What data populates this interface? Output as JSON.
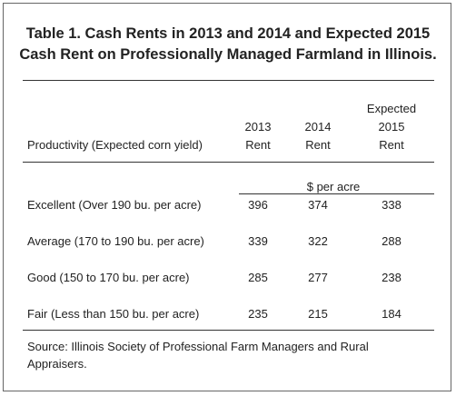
{
  "title": [
    "Table 1.  Cash Rents in 2013 and 2014 and Expected 2015",
    "Cash Rent on Professionally Managed Farmland in Illinois."
  ],
  "table": {
    "columns": [
      [
        "Productivity (Expected corn yield)"
      ],
      [
        "2013",
        "Rent"
      ],
      [
        "2014",
        "Rent"
      ],
      [
        "Expected",
        "2015",
        "Rent"
      ]
    ],
    "unit": "$ per acre",
    "rows": [
      [
        "Excellent (Over 190 bu. per acre)",
        "396",
        "374",
        "338"
      ],
      [
        "Average (170 to 190 bu. per acre)",
        "339",
        "322",
        "288"
      ],
      [
        "Good (150 to 170 bu. per acre)",
        "285",
        "277",
        "238"
      ],
      [
        "Fair (Less than 150 bu. per acre)",
        "235",
        "215",
        "184"
      ]
    ]
  },
  "source": [
    "Source:  Illinois Society of Professional Farm Managers and Rural",
    "Appraisers."
  ]
}
